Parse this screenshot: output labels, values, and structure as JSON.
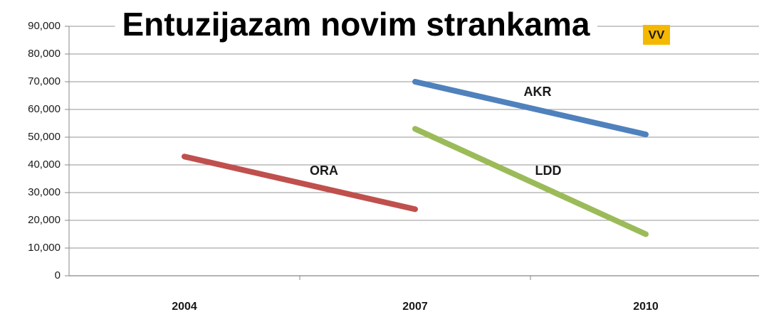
{
  "chart_data": {
    "type": "line",
    "title": "Entuzijazam novim strankama",
    "annotation": "VV",
    "categories": [
      "2004",
      "2007",
      "2010"
    ],
    "series": [
      {
        "name": "ORA",
        "color": "#c0504d",
        "values": [
          43000,
          24000,
          null
        ]
      },
      {
        "name": "AKR",
        "color": "#4f81bd",
        "values": [
          null,
          70000,
          51000
        ]
      },
      {
        "name": "LDD",
        "color": "#9bbb59",
        "values": [
          null,
          53000,
          15000
        ]
      }
    ],
    "ylim": [
      0,
      90000
    ],
    "yticks": [
      0,
      {
        "value": 10000,
        "label": "10,000"
      },
      {
        "value": 20000,
        "label": "20,000"
      },
      {
        "value": 30000,
        "label": "30,000"
      },
      {
        "value": 40000,
        "label": "40,000"
      },
      {
        "value": 50000,
        "label": "50,000"
      },
      {
        "value": 60000,
        "label": "60,000"
      },
      {
        "value": 70000,
        "label": "70,000"
      },
      {
        "value": 80000,
        "label": "80,000"
      },
      {
        "value": 90000,
        "label": "90,000"
      }
    ],
    "grid": true
  }
}
